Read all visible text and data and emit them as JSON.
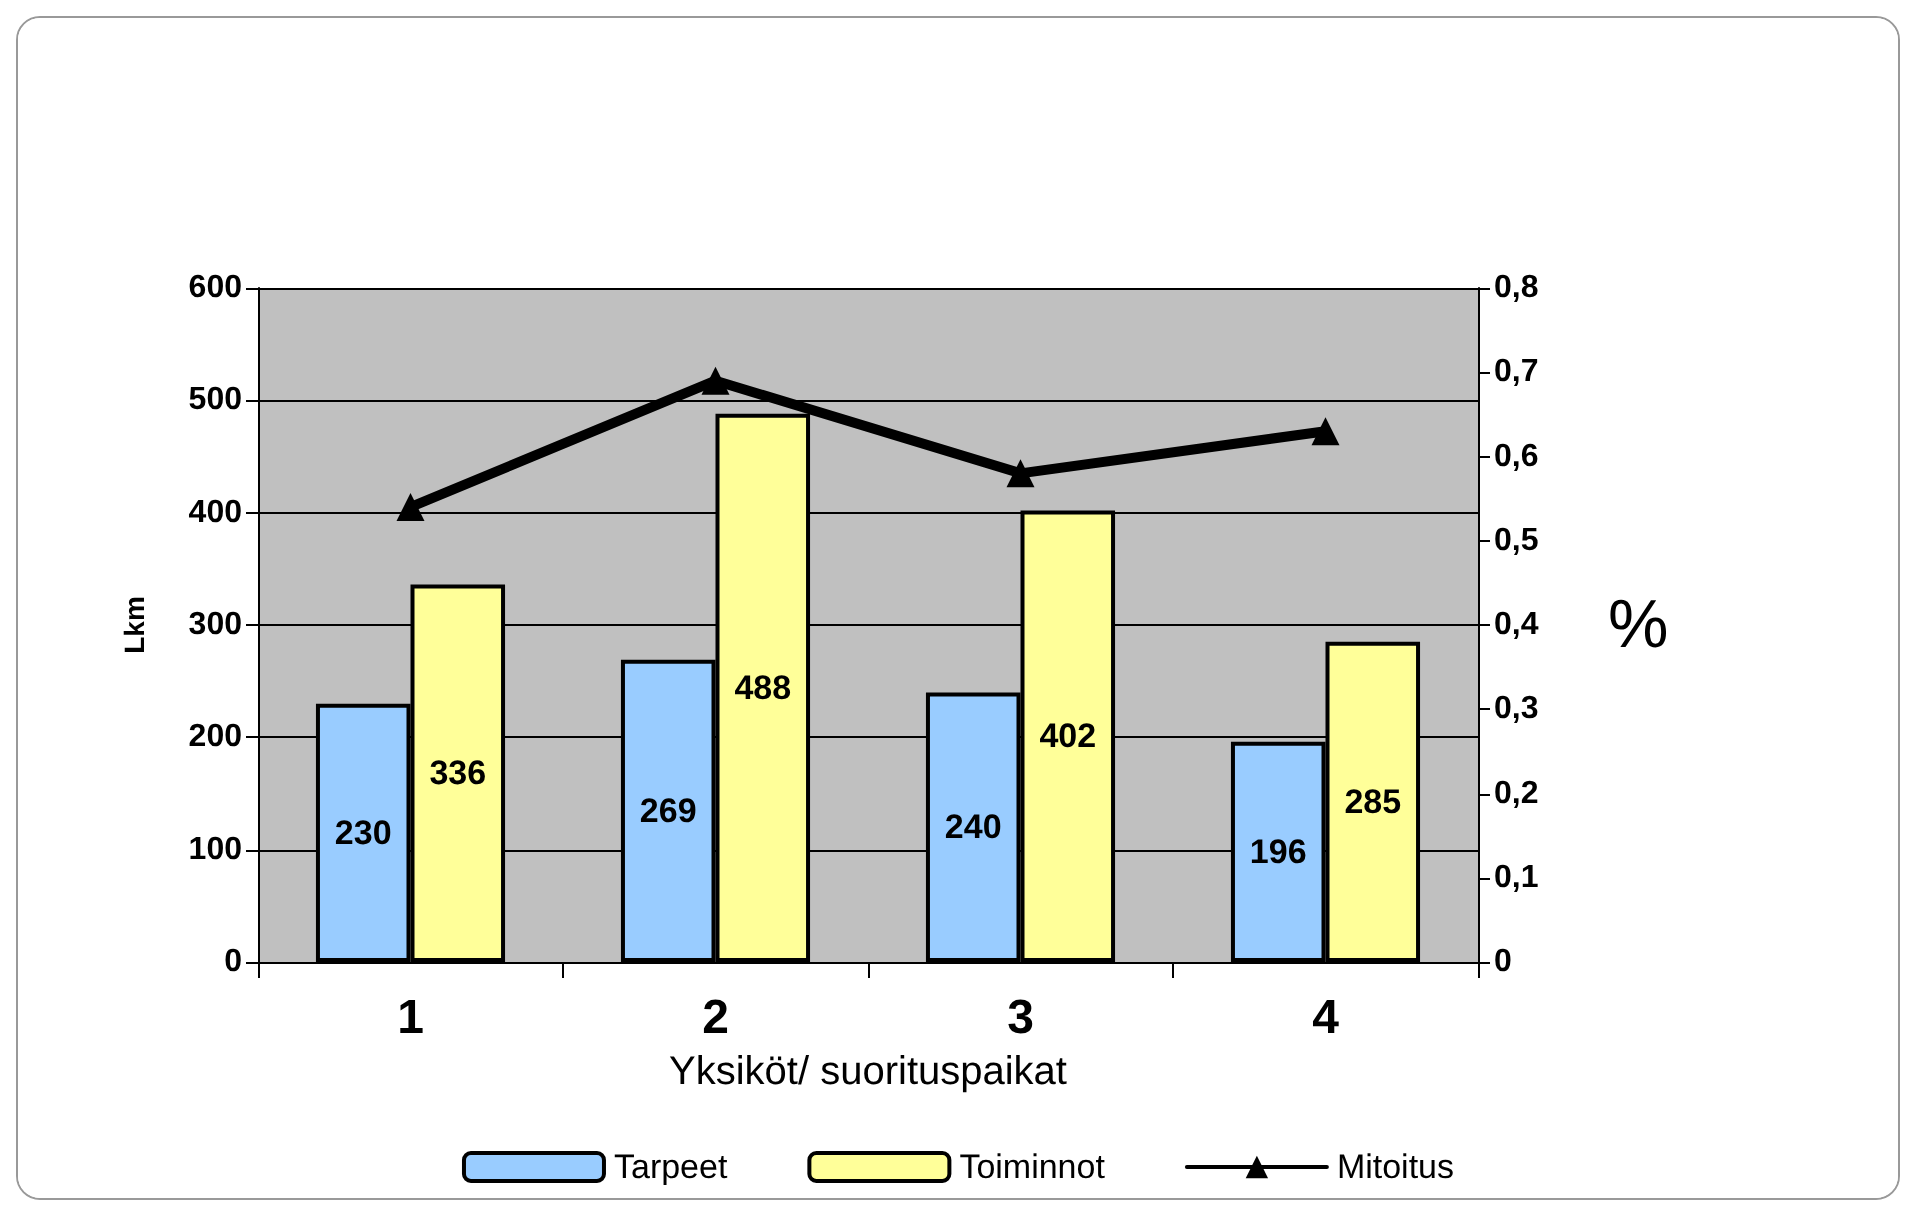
{
  "chart_data": {
    "type": "bar",
    "xlabel": "Yksiköt/ suorituspaikat",
    "ylabel": "Lkm",
    "y2label": "%",
    "categories": [
      "1",
      "2",
      "3",
      "4"
    ],
    "series": [
      {
        "name": "Tarpeet",
        "color": "#99ccff",
        "values": [
          230,
          269,
          240,
          196
        ],
        "value_labels": [
          "230",
          "269",
          "240",
          "196"
        ]
      },
      {
        "name": "Toiminnot",
        "color": "#ffff99",
        "values": [
          336,
          488,
          402,
          285
        ],
        "value_labels": [
          "336",
          "488",
          "402",
          "285"
        ]
      },
      {
        "name": "Mitoitus",
        "type": "line",
        "axis": "y2",
        "color": "#000000",
        "marker": "triangle",
        "line_style": "solid",
        "values": [
          0.54,
          0.69,
          0.58,
          0.63
        ]
      }
    ],
    "ylim": [
      0,
      600
    ],
    "yticks": [
      0,
      100,
      200,
      300,
      400,
      500,
      600
    ],
    "y2lim": [
      0,
      0.8
    ],
    "y2ticks": [
      {
        "value": 0,
        "label": "0"
      },
      {
        "value": 0.1,
        "label": "0,1"
      },
      {
        "value": 0.2,
        "label": "0,2"
      },
      {
        "value": 0.3,
        "label": "0,3"
      },
      {
        "value": 0.4,
        "label": "0,4"
      },
      {
        "value": 0.5,
        "label": "0,5"
      },
      {
        "value": 0.6,
        "label": "0,6"
      },
      {
        "value": 0.7,
        "label": "0,7"
      },
      {
        "value": 0.8,
        "label": "0,8"
      }
    ],
    "grid": "y",
    "legend": "bottom"
  }
}
